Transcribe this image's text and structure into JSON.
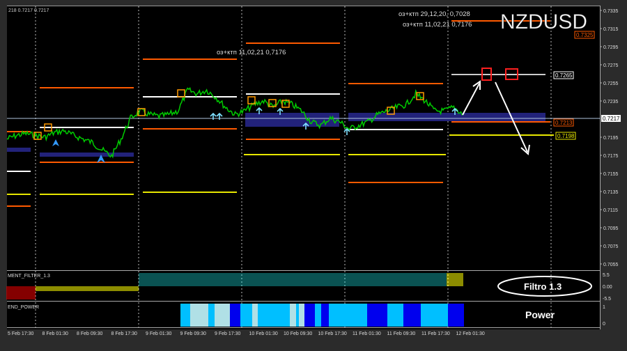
{
  "symbol": "NZDUSD",
  "ohlc_header": "218 0.7217 0.7217",
  "annotations": [
    {
      "text": "оз+ктп 29,12,20,   0,7028"
    },
    {
      "text": "оз+ктп 11,02,21  0,7176"
    },
    {
      "text": "оз+ктп 11,02,21  0,7176"
    }
  ],
  "price_axis": [
    "0.7335",
    "0.7315",
    "0.7295",
    "0.7275",
    "0.7255",
    "0.7235",
    "0.7195",
    "0.7175",
    "0.7155",
    "0.7135",
    "0.7115",
    "0.7095",
    "0.7075",
    "0.7055"
  ],
  "level_labels": {
    "top": "0.7325",
    "resistance": "0.7265",
    "current": "0.7217",
    "support1": "0.7213",
    "support2": "0.7198"
  },
  "filter_panel": {
    "name": "MENT_FILTER_1.3",
    "label": "Filtro 1.3",
    "axis": [
      "5.5",
      "0.00",
      "-5.5"
    ]
  },
  "power_panel": {
    "name": "END_POWER",
    "label": "Power",
    "axis": [
      "1",
      "0"
    ]
  },
  "time_axis": [
    "5 Feb 17:30",
    "8 Feb 01:30",
    "8 Feb 09:30",
    "8 Feb 17:30",
    "9 Feb 01:30",
    "9 Feb 09:30",
    "9 Feb 17:30",
    "10 Feb 01:30",
    "10 Feb 09:30",
    "10 Feb 17:30",
    "11 Feb 01:30",
    "11 Feb 09:30",
    "11 Feb 17:30",
    "12 Feb 01:30"
  ],
  "price_path": [
    0.7193,
    0.7197,
    0.7199,
    0.7197,
    0.7195,
    0.72,
    0.7202,
    0.7197,
    0.7193,
    0.7189,
    0.7181,
    0.7174,
    0.7193,
    0.7216,
    0.7224,
    0.722,
    0.7218,
    0.722,
    0.7224,
    0.7247,
    0.7243,
    0.7247,
    0.7239,
    0.7228,
    0.722,
    0.7224,
    0.7231,
    0.7235,
    0.7228,
    0.7235,
    0.7231,
    0.7224,
    0.7212,
    0.7208,
    0.7216,
    0.7212,
    0.7204,
    0.7208,
    0.7212,
    0.722,
    0.7224,
    0.7228,
    0.7231,
    0.7243,
    0.7235,
    0.7224,
    0.7224,
    0.7228,
    0.722
  ],
  "colors": {
    "bull": "#00cc00",
    "resistance": "#ff5a00",
    "support": "#e8e800",
    "pivot": "#ffffff",
    "zone": "#22227a",
    "power_light": "#00bfff",
    "power_dark": "#0000ee",
    "power_pale": "#b0e0e6",
    "filter_teal": "#0f7f7f",
    "filter_yellow": "#d8d800",
    "filter_red": "#cc0000"
  }
}
